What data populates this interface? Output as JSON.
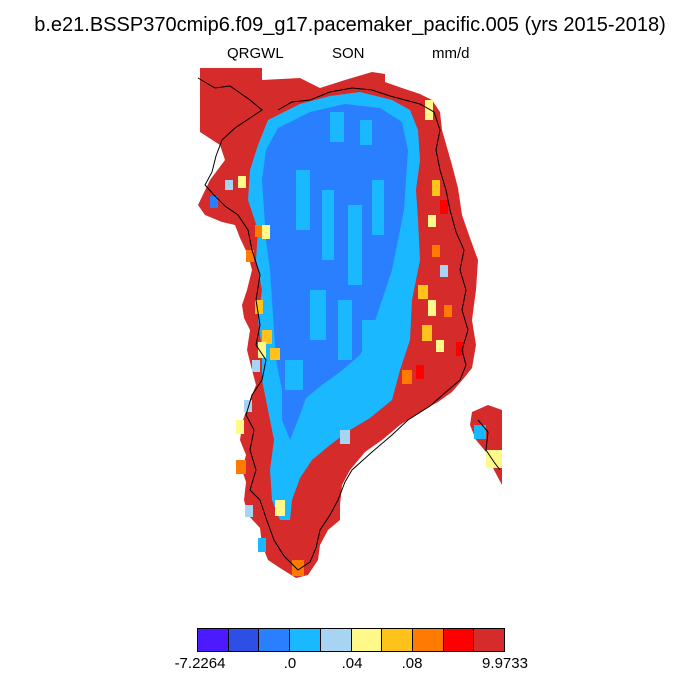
{
  "title": "b.e21.BSSP370cmip6.f09_g17.pacemaker_pacific.005 (yrs 2015-2018)",
  "subtitle": {
    "left": "QRGWL",
    "center": "SON",
    "right": "mm/d"
  },
  "palette": {
    "deep_blue": "#4b1aff",
    "blue": "#2e4fe6",
    "mid_blue": "#2a7fff",
    "sky_blue": "#1ab8ff",
    "light_blue": "#a6d4f2",
    "pale_yellow": "#fff98a",
    "gold": "#ffc21a",
    "orange": "#ff7a00",
    "red": "#ff0000",
    "dark_red": "#d62b2b"
  },
  "colorbar": {
    "colors": [
      "#4b1aff",
      "#2e4fe6",
      "#2a7fff",
      "#1ab8ff",
      "#a6d4f2",
      "#fff98a",
      "#ffc21a",
      "#ff7a00",
      "#ff0000",
      "#d62b2b"
    ],
    "labels": [
      "-7.2264",
      ".0",
      ".04",
      ".08",
      "9.9733"
    ]
  }
}
